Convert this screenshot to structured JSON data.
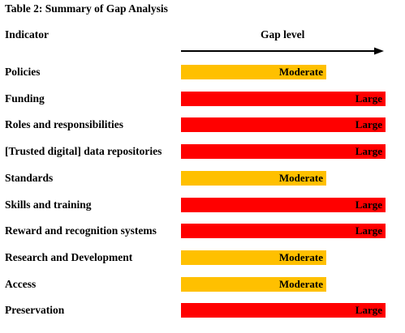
{
  "table": {
    "title": "Table 2: Summary of Gap Analysis",
    "header_indicator": "Indicator",
    "header_gap": "Gap level",
    "colors": {
      "moderate": "#FFC000",
      "large": "#FF0000"
    },
    "rows": [
      {
        "indicator": "Policies",
        "level": "Moderate",
        "fraction": 0.71
      },
      {
        "indicator": "Funding",
        "level": "Large",
        "fraction": 1.0
      },
      {
        "indicator": "Roles and responsibilities",
        "level": "Large",
        "fraction": 1.0
      },
      {
        "indicator": "[Trusted digital] data repositories",
        "level": "Large",
        "fraction": 1.0
      },
      {
        "indicator": "Standards",
        "level": "Moderate",
        "fraction": 0.71
      },
      {
        "indicator": "Skills and training",
        "level": "Large",
        "fraction": 1.0
      },
      {
        "indicator": "Reward and recognition systems",
        "level": "Large",
        "fraction": 1.0
      },
      {
        "indicator": "Research and Development",
        "level": "Moderate",
        "fraction": 0.71
      },
      {
        "indicator": "Access",
        "level": "Moderate",
        "fraction": 0.71
      },
      {
        "indicator": "Preservation",
        "level": "Large",
        "fraction": 1.0
      }
    ]
  }
}
